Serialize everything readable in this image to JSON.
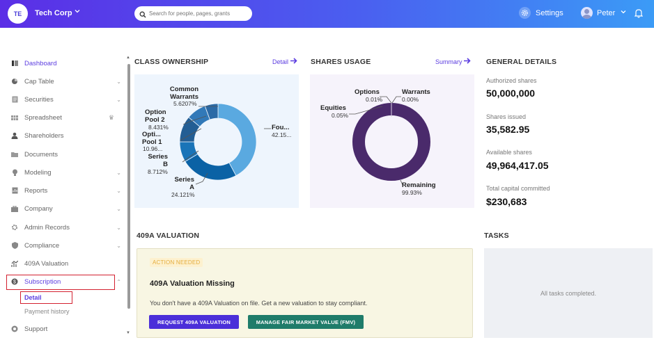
{
  "header": {
    "org_initials": "TE",
    "org_name": "Tech Corp",
    "search_placeholder": "Search for people, pages, grants",
    "settings_label": "Settings",
    "user_name": "Peter"
  },
  "sidebar": {
    "items": [
      {
        "label": "Dashboard",
        "icon": "dashboard-icon"
      },
      {
        "label": "Cap Table",
        "icon": "cap-table-icon"
      },
      {
        "label": "Securities",
        "icon": "securities-icon"
      },
      {
        "label": "Spreadsheet",
        "icon": "spreadsheet-icon"
      },
      {
        "label": "Shareholders",
        "icon": "shareholders-icon"
      },
      {
        "label": "Documents",
        "icon": "documents-icon"
      },
      {
        "label": "Modeling",
        "icon": "modeling-icon"
      },
      {
        "label": "Reports",
        "icon": "reports-icon"
      },
      {
        "label": "Company",
        "icon": "company-icon"
      },
      {
        "label": "Admin Records",
        "icon": "admin-records-icon"
      },
      {
        "label": "Compliance",
        "icon": "compliance-icon"
      },
      {
        "label": "409A Valuation",
        "icon": "valuation-icon"
      },
      {
        "label": "Subscription",
        "icon": "subscription-icon"
      },
      {
        "label": "Support",
        "icon": "support-icon"
      }
    ],
    "sub_items": [
      {
        "label": "Detail"
      },
      {
        "label": "Payment history"
      }
    ]
  },
  "class_ownership": {
    "title": "CLASS OWNERSHIP",
    "link": "Detail",
    "labels": {
      "common_warrants": [
        "Common",
        "Warrants"
      ],
      "common_warrants_pct": "5.6207%",
      "option_pool_2": [
        "Option",
        "Pool 2"
      ],
      "option_pool_2_pct": "8.431%",
      "option_pool_1": [
        "Opti...",
        "Pool 1"
      ],
      "option_pool_1_pct": "10.96...",
      "series_b": [
        "Series",
        "B"
      ],
      "series_b_pct": "8.712%",
      "series_a": [
        "Series",
        "A"
      ],
      "series_a_pct": "24.121%",
      "founders": "Fou...",
      "founders_pct": "42.15..."
    }
  },
  "shares_usage": {
    "title": "SHARES USAGE",
    "link": "Summary",
    "options_label": "Options",
    "options_pct": "0.01%",
    "warrants_label": "Warrants",
    "warrants_pct": "0.00%",
    "equities_label": "Equities",
    "equities_pct": "0.05%",
    "remaining_label": "Remaining",
    "remaining_pct": "99.93%"
  },
  "general_details": {
    "title": "GENERAL DETAILS",
    "authorized_label": "Authorized shares",
    "authorized_value": "50,000,000",
    "issued_label": "Shares issued",
    "issued_value": "35,582.95",
    "available_label": "Available shares",
    "available_value": "49,964,417.05",
    "capital_label": "Total capital committed",
    "capital_value": "$230,683"
  },
  "valuation": {
    "title": "409A VALUATION",
    "badge": "ACTION NEEDED",
    "card_title": "409A Valuation Missing",
    "card_text": "You don't have a 409A Valuation on file. Get a new valuation to stay compliant.",
    "request_button": "REQUEST 409A VALUATION",
    "fmv_button": "MANAGE FAIR MARKET VALUE (FMV)"
  },
  "tasks": {
    "title": "TASKS",
    "empty_text": "All tasks completed."
  },
  "colors": {
    "accent": "#5b3ce0",
    "ownership_palette": [
      "#5aa9e0",
      "#0b62a5",
      "#1a74b8",
      "#235e94",
      "#3279b8",
      "#2b6aa6"
    ],
    "usage_ring": "#4a2a6b",
    "request_button": "#4b2fd9",
    "fmv_button": "#1f7c6a",
    "highlight": "#d3202f"
  }
}
